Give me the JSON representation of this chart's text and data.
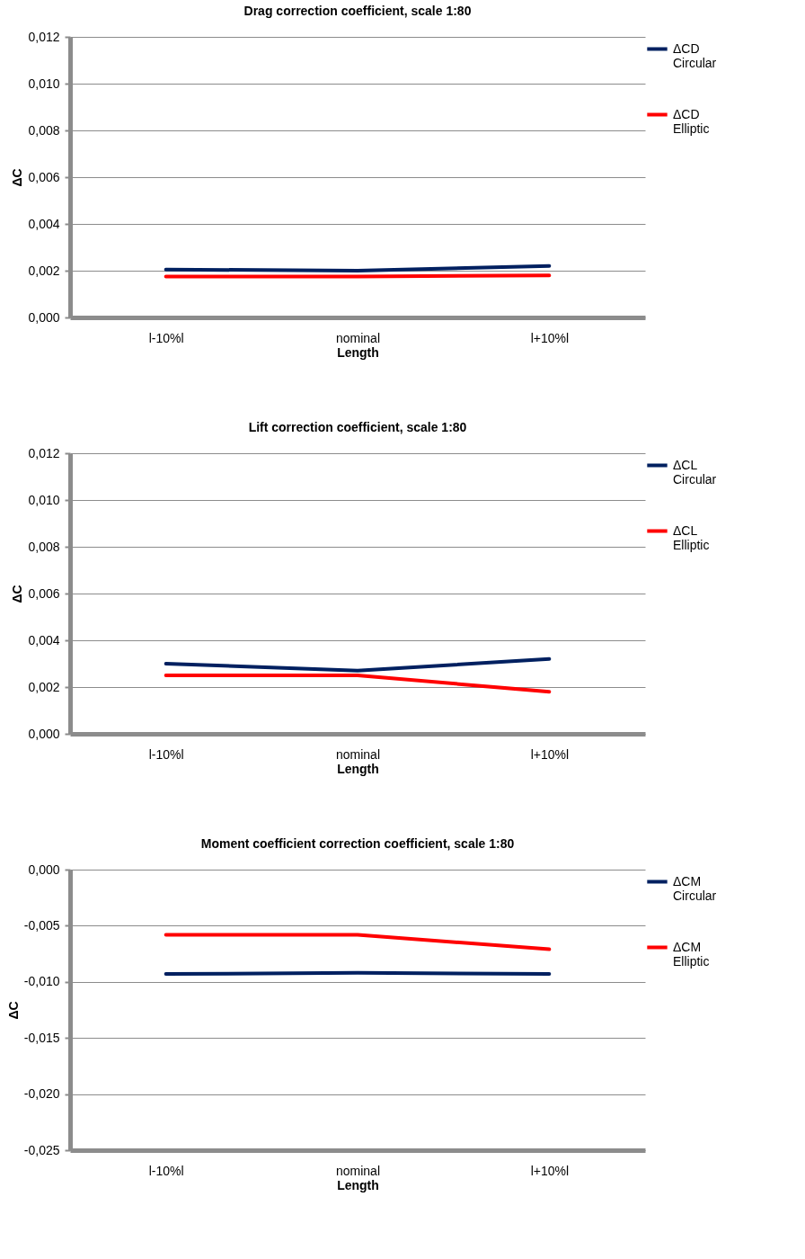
{
  "chart_data": [
    {
      "type": "line",
      "title": "Drag correction coefficient, scale 1:80",
      "xlabel": "Length",
      "ylabel": "ΔC",
      "categories": [
        "l-10%l",
        "nominal",
        "l+10%l"
      ],
      "series": [
        {
          "name": "ΔCD Circular",
          "color": "#002060",
          "values": [
            0.00205,
            0.002,
            0.0022
          ]
        },
        {
          "name": "ΔCD Elliptic",
          "color": "#ff0000",
          "values": [
            0.00175,
            0.00175,
            0.0018
          ]
        }
      ],
      "ylim": [
        0,
        0.012
      ],
      "yticks": [
        {
          "value": 0,
          "label": "0,000"
        },
        {
          "value": 0.002,
          "label": "0,002"
        },
        {
          "value": 0.004,
          "label": "0,004"
        },
        {
          "value": 0.006,
          "label": "0,006"
        },
        {
          "value": 0.008,
          "label": "0,008"
        },
        {
          "value": 0.01,
          "label": "0,010"
        },
        {
          "value": 0.012,
          "label": "0,012"
        }
      ],
      "grid": "y",
      "legend": "right",
      "marker": "none",
      "line_style": "solid"
    },
    {
      "type": "line",
      "title": "Lift correction coefficient, scale 1:80",
      "xlabel": "Length",
      "ylabel": "ΔC",
      "categories": [
        "l-10%l",
        "nominal",
        "l+10%l"
      ],
      "series": [
        {
          "name": "ΔCL Circular",
          "color": "#002060",
          "values": [
            0.003,
            0.0027,
            0.0032
          ]
        },
        {
          "name": "ΔCL Elliptic",
          "color": "#ff0000",
          "values": [
            0.0025,
            0.0025,
            0.0018
          ]
        }
      ],
      "ylim": [
        0,
        0.012
      ],
      "yticks": [
        {
          "value": 0,
          "label": "0,000"
        },
        {
          "value": 0.002,
          "label": "0,002"
        },
        {
          "value": 0.004,
          "label": "0,004"
        },
        {
          "value": 0.006,
          "label": "0,006"
        },
        {
          "value": 0.008,
          "label": "0,008"
        },
        {
          "value": 0.01,
          "label": "0,010"
        },
        {
          "value": 0.012,
          "label": "0,012"
        }
      ],
      "grid": "y",
      "legend": "right",
      "marker": "none",
      "line_style": "solid"
    },
    {
      "type": "line",
      "title": "Moment coefficient correction coefficient, scale 1:80",
      "xlabel": "Length",
      "ylabel": "ΔC",
      "categories": [
        "l-10%l",
        "nominal",
        "l+10%l"
      ],
      "series": [
        {
          "name": "ΔCM Circular",
          "color": "#002060",
          "values": [
            -0.0093,
            -0.0092,
            -0.0093
          ]
        },
        {
          "name": "ΔCM Elliptic",
          "color": "#ff0000",
          "values": [
            -0.0058,
            -0.0058,
            -0.0071
          ]
        }
      ],
      "ylim": [
        -0.025,
        0
      ],
      "yticks": [
        {
          "value": -0.025,
          "label": "-0,025"
        },
        {
          "value": -0.02,
          "label": "-0,020"
        },
        {
          "value": -0.015,
          "label": "-0,015"
        },
        {
          "value": -0.01,
          "label": "-0,010"
        },
        {
          "value": -0.005,
          "label": "-0,005"
        },
        {
          "value": 0,
          "label": "0,000"
        }
      ],
      "grid": "y",
      "legend": "right",
      "marker": "none",
      "line_style": "solid"
    }
  ]
}
